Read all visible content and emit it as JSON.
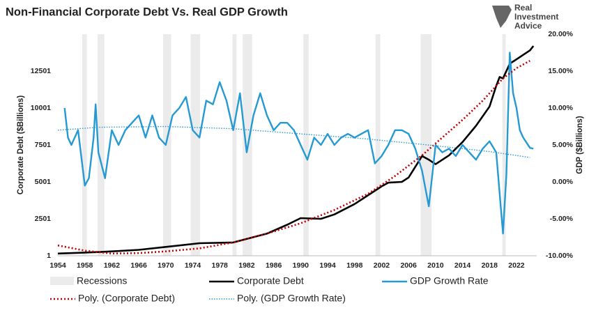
{
  "chart_data": {
    "type": "line",
    "title": "Non-Financial Corporate Debt Vs. Real GDP Growth",
    "logo": [
      "Real",
      "Investment",
      "Advice"
    ],
    "y_label": "Corporate Debt ($Billions)",
    "y2_label": "GDP ($Billions)",
    "xlim": [
      1954,
      2025
    ],
    "xticks": [
      1954,
      1958,
      1962,
      1966,
      1970,
      1974,
      1978,
      1982,
      1986,
      1990,
      1994,
      1998,
      2002,
      2006,
      2010,
      2014,
      2018,
      2022
    ],
    "ylim": [
      1,
      15001
    ],
    "yticks": [
      1,
      2501,
      5001,
      7501,
      10001,
      12501
    ],
    "y2lim": [
      -10,
      20
    ],
    "y2ticks": [
      {
        "value": -10,
        "label": "-10.00%"
      },
      {
        "value": -5,
        "label": "-5.00%"
      },
      {
        "value": 0,
        "label": "0.00%"
      },
      {
        "value": 5,
        "label": "5.00%"
      },
      {
        "value": 10,
        "label": "10.00%"
      },
      {
        "value": 15,
        "label": "15.00%"
      },
      {
        "value": 20,
        "label": "20.00%"
      }
    ],
    "recessions": {
      "name": "Recessions",
      "color": "#ebebeb",
      "periods": [
        [
          1957.6,
          1958.3
        ],
        [
          1959.9,
          1960.9
        ],
        [
          1969.6,
          1970.8
        ],
        [
          1973.7,
          1975.1
        ],
        [
          1979.9,
          1980.5
        ],
        [
          1981.4,
          1982.8
        ],
        [
          1990.4,
          1991.2
        ],
        [
          2001.1,
          2001.8
        ],
        [
          2007.8,
          2009.4
        ],
        [
          2019.9,
          2020.4
        ]
      ]
    },
    "series": [
      {
        "name": "Corporate Debt",
        "color": "#000000",
        "style": "solid",
        "width": 2.6,
        "x": [
          1954,
          1957,
          1960,
          1963,
          1966,
          1970,
          1975,
          1980,
          1985,
          1988,
          1990,
          1993,
          1995,
          1998,
          2000,
          2002,
          2003,
          2005,
          2006,
          2008,
          2009,
          2010,
          2012,
          2014,
          2016,
          2018,
          2019,
          2019.5,
          2020,
          2021,
          2022,
          2023,
          2024,
          2024.5
        ],
        "values": [
          150,
          200,
          250,
          320,
          400,
          600,
          850,
          900,
          1500,
          2100,
          2550,
          2500,
          2800,
          3500,
          4100,
          4700,
          4950,
          5000,
          5300,
          6750,
          6500,
          6200,
          6800,
          7700,
          8800,
          10100,
          11500,
          12100,
          12000,
          13000,
          13300,
          13600,
          13900,
          14200
        ]
      },
      {
        "name": "GDP Growth Rate",
        "color": "#2499d3",
        "style": "solid",
        "width": 2.4,
        "axis": "y2",
        "x": [
          1955,
          1955.5,
          1956,
          1957,
          1958,
          1958.6,
          1959.3,
          1959.6,
          1960,
          1961,
          1962,
          1963,
          1964,
          1965,
          1966,
          1967,
          1968,
          1969,
          1970,
          1971,
          1972,
          1973,
          1974,
          1975,
          1976,
          1977,
          1978,
          1979,
          1980,
          1981,
          1982,
          1983,
          1984,
          1985,
          1986,
          1987,
          1988,
          1989,
          1990,
          1991,
          1992,
          1993,
          1994,
          1995,
          1996,
          1997,
          1998,
          1999,
          2000,
          2001,
          2002,
          2003,
          2004,
          2005,
          2006,
          2007,
          2008,
          2009,
          2010,
          2011,
          2012,
          2013,
          2014,
          2015,
          2016,
          2017,
          2018,
          2019,
          2020,
          2020.5,
          2021,
          2021.5,
          2022,
          2022.5,
          2023,
          2024,
          2024.5
        ],
        "values": [
          10,
          6,
          5,
          7,
          -0.5,
          0.5,
          6,
          10.5,
          4,
          0.5,
          7,
          5,
          7,
          8,
          9,
          6,
          9,
          6,
          5,
          9,
          10,
          11.5,
          7,
          6,
          11,
          10.5,
          13.5,
          11,
          7,
          12,
          4,
          9,
          12,
          9,
          7,
          8,
          8,
          7,
          5,
          3,
          6,
          5,
          6.5,
          5,
          6,
          6.5,
          6,
          6.5,
          7,
          2.5,
          3.5,
          5,
          7,
          7,
          6.5,
          4.5,
          1.5,
          -3.3,
          5,
          4,
          4.5,
          3.5,
          5,
          4,
          3,
          4.5,
          5.5,
          4,
          -7,
          1,
          17.5,
          12,
          10,
          7,
          6,
          4.6,
          4.5
        ]
      },
      {
        "name": "Poly. (Corporate Debt)",
        "color": "#c00000",
        "style": "dotted",
        "width": 2.6,
        "x": [
          1954,
          1958,
          1962,
          1966,
          1970,
          1975,
          1980,
          1985,
          1990,
          1995,
          2000,
          2004,
          2008,
          2011,
          2014,
          2017,
          2020,
          2022,
          2024
        ],
        "values": [
          700,
          350,
          150,
          180,
          300,
          500,
          900,
          1500,
          2200,
          3100,
          4200,
          5400,
          6800,
          8000,
          9200,
          10500,
          12000,
          12700,
          13200
        ]
      },
      {
        "name": "Poly. (GDP Growth Rate)",
        "color": "#2499d3",
        "style": "dotted",
        "width": 1.4,
        "axis": "y2",
        "x": [
          1954,
          1960,
          1970,
          1980,
          1990,
          2000,
          2010,
          2018,
          2024
        ],
        "values": [
          7,
          7.4,
          7.5,
          7.2,
          6.5,
          5.8,
          4.9,
          4.1,
          3.3
        ]
      }
    ]
  }
}
